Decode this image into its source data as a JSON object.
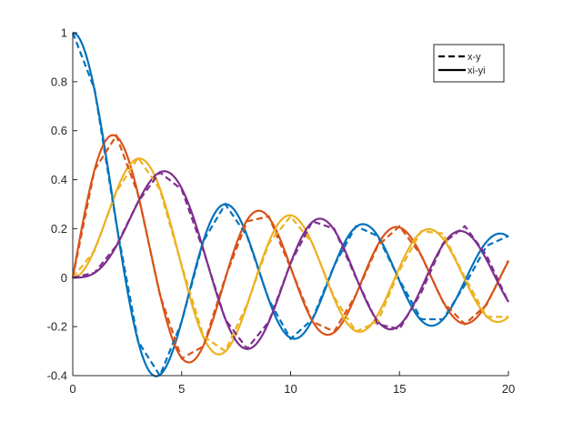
{
  "chart_data": {
    "type": "line",
    "title": "",
    "xlabel": "",
    "ylabel": "",
    "xlim": [
      0,
      20
    ],
    "ylim": [
      -0.4,
      1
    ],
    "x_ticks": [
      "0",
      "5",
      "10",
      "15",
      "20"
    ],
    "y_ticks": [
      "-0.4",
      "-0.2",
      "0",
      "0.2",
      "0.4",
      "0.6",
      "0.8",
      "1"
    ],
    "grid": false,
    "legend_position": "top-right",
    "legend": [
      {
        "label": "x-y",
        "style": "dashed"
      },
      {
        "label": "xi-yi",
        "style": "solid"
      }
    ],
    "series_colors": [
      "#0072BD",
      "#D95319",
      "#EDB120",
      "#7E2F8E"
    ],
    "sample_x": [
      0,
      1,
      2,
      3,
      4,
      5,
      6,
      7,
      8,
      9,
      10,
      11,
      12,
      13,
      14,
      15,
      16,
      17,
      18,
      19,
      20
    ],
    "dashed_series": [
      {
        "values": [
          1.0,
          0.77,
          0.22,
          -0.26,
          -0.4,
          -0.18,
          0.15,
          0.3,
          0.17,
          -0.09,
          -0.25,
          -0.17,
          0.05,
          0.21,
          0.17,
          -0.01,
          -0.17,
          -0.17,
          -0.03,
          0.13,
          0.17
        ]
      },
      {
        "values": [
          0.0,
          0.44,
          0.58,
          0.34,
          -0.07,
          -0.33,
          -0.28,
          -0.0,
          0.23,
          0.25,
          0.04,
          -0.18,
          -0.22,
          -0.07,
          0.13,
          0.21,
          0.09,
          -0.1,
          -0.19,
          -0.11,
          0.07
        ]
      },
      {
        "values": [
          0.0,
          0.11,
          0.35,
          0.49,
          0.36,
          0.05,
          -0.24,
          -0.3,
          -0.11,
          0.14,
          0.25,
          0.14,
          -0.08,
          -0.22,
          -0.18,
          0.03,
          0.19,
          0.18,
          0.0,
          -0.16,
          -0.16
        ]
      },
      {
        "values": [
          0.0,
          0.02,
          0.13,
          0.31,
          0.43,
          0.36,
          0.11,
          -0.17,
          -0.29,
          -0.18,
          0.06,
          0.23,
          0.2,
          0.0,
          -0.19,
          -0.21,
          -0.06,
          0.14,
          0.21,
          0.09,
          -0.1
        ]
      }
    ]
  }
}
